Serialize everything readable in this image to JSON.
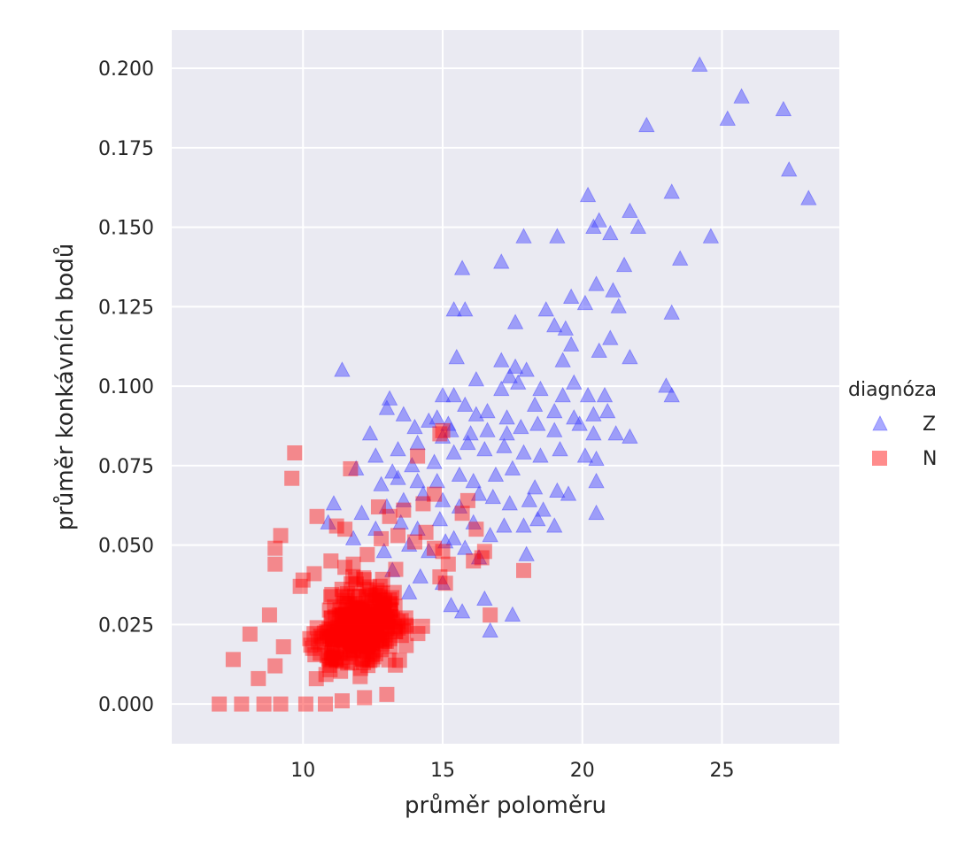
{
  "chart_data": {
    "type": "scatter",
    "xlabel": "průměr poloměru",
    "ylabel": "průměr konkávních bodů",
    "xlim": [
      5.3,
      29.2
    ],
    "ylim": [
      -0.0125,
      0.212
    ],
    "xticks": [
      10,
      15,
      20,
      25
    ],
    "yticks": [
      0.0,
      0.025,
      0.05,
      0.075,
      0.1,
      0.125,
      0.15,
      0.175,
      0.2
    ],
    "xtick_labels": [
      "10",
      "15",
      "20",
      "25"
    ],
    "ytick_labels": [
      "0.000",
      "0.025",
      "0.050",
      "0.075",
      "0.100",
      "0.125",
      "0.150",
      "0.175",
      "0.200"
    ],
    "grid": true,
    "legend": {
      "title": "diagnóza",
      "placement": "right"
    },
    "colors": {
      "background": "#eaeaf2",
      "grid": "#ffffff",
      "Z": "#4040ff",
      "N": "#ff0000"
    },
    "series": [
      {
        "name": "Z",
        "marker": "triangle",
        "color": "#4040ff",
        "points": [
          [
            24.2,
            0.201
          ],
          [
            25.7,
            0.191
          ],
          [
            27.2,
            0.187
          ],
          [
            25.2,
            0.184
          ],
          [
            22.3,
            0.182
          ],
          [
            27.4,
            0.168
          ],
          [
            28.1,
            0.159
          ],
          [
            23.2,
            0.161
          ],
          [
            20.2,
            0.16
          ],
          [
            21.7,
            0.155
          ],
          [
            20.6,
            0.152
          ],
          [
            20.4,
            0.15
          ],
          [
            22.0,
            0.15
          ],
          [
            21.0,
            0.148
          ],
          [
            17.9,
            0.147
          ],
          [
            19.1,
            0.147
          ],
          [
            24.6,
            0.147
          ],
          [
            23.5,
            0.14
          ],
          [
            17.1,
            0.139
          ],
          [
            21.5,
            0.138
          ],
          [
            15.7,
            0.137
          ],
          [
            20.5,
            0.132
          ],
          [
            21.1,
            0.13
          ],
          [
            19.6,
            0.128
          ],
          [
            20.1,
            0.126
          ],
          [
            15.4,
            0.124
          ],
          [
            15.8,
            0.124
          ],
          [
            18.7,
            0.124
          ],
          [
            21.3,
            0.125
          ],
          [
            23.2,
            0.123
          ],
          [
            17.6,
            0.12
          ],
          [
            19.0,
            0.119
          ],
          [
            19.4,
            0.118
          ],
          [
            21.0,
            0.115
          ],
          [
            19.6,
            0.113
          ],
          [
            20.6,
            0.111
          ],
          [
            11.4,
            0.105
          ],
          [
            15.5,
            0.109
          ],
          [
            17.1,
            0.108
          ],
          [
            17.6,
            0.106
          ],
          [
            18.0,
            0.105
          ],
          [
            19.3,
            0.108
          ],
          [
            21.7,
            0.109
          ],
          [
            17.4,
            0.103
          ],
          [
            16.2,
            0.102
          ],
          [
            19.7,
            0.101
          ],
          [
            23.0,
            0.1
          ],
          [
            23.2,
            0.097
          ],
          [
            13.1,
            0.096
          ],
          [
            13.0,
            0.093
          ],
          [
            15.0,
            0.097
          ],
          [
            15.4,
            0.097
          ],
          [
            17.1,
            0.099
          ],
          [
            17.7,
            0.101
          ],
          [
            18.5,
            0.099
          ],
          [
            19.3,
            0.097
          ],
          [
            20.2,
            0.097
          ],
          [
            20.8,
            0.097
          ],
          [
            13.6,
            0.091
          ],
          [
            14.0,
            0.087
          ],
          [
            14.5,
            0.089
          ],
          [
            14.8,
            0.09
          ],
          [
            15.2,
            0.088
          ],
          [
            15.8,
            0.094
          ],
          [
            16.2,
            0.091
          ],
          [
            16.6,
            0.092
          ],
          [
            17.3,
            0.09
          ],
          [
            18.3,
            0.094
          ],
          [
            19.0,
            0.092
          ],
          [
            19.7,
            0.09
          ],
          [
            20.4,
            0.091
          ],
          [
            20.9,
            0.092
          ],
          [
            12.4,
            0.085
          ],
          [
            13.4,
            0.08
          ],
          [
            14.1,
            0.082
          ],
          [
            15.0,
            0.084
          ],
          [
            15.3,
            0.086
          ],
          [
            16.0,
            0.085
          ],
          [
            16.6,
            0.086
          ],
          [
            17.3,
            0.085
          ],
          [
            17.8,
            0.087
          ],
          [
            18.4,
            0.088
          ],
          [
            19.0,
            0.086
          ],
          [
            19.9,
            0.088
          ],
          [
            20.4,
            0.085
          ],
          [
            21.2,
            0.085
          ],
          [
            21.7,
            0.084
          ],
          [
            12.6,
            0.078
          ],
          [
            13.2,
            0.073
          ],
          [
            13.9,
            0.075
          ],
          [
            14.7,
            0.076
          ],
          [
            15.4,
            0.079
          ],
          [
            15.9,
            0.082
          ],
          [
            16.5,
            0.08
          ],
          [
            17.2,
            0.081
          ],
          [
            17.9,
            0.079
          ],
          [
            18.5,
            0.078
          ],
          [
            19.2,
            0.08
          ],
          [
            20.1,
            0.078
          ],
          [
            20.5,
            0.077
          ],
          [
            11.9,
            0.074
          ],
          [
            12.8,
            0.069
          ],
          [
            13.4,
            0.071
          ],
          [
            14.1,
            0.07
          ],
          [
            14.8,
            0.07
          ],
          [
            15.6,
            0.072
          ],
          [
            16.1,
            0.07
          ],
          [
            16.9,
            0.072
          ],
          [
            17.5,
            0.074
          ],
          [
            18.3,
            0.068
          ],
          [
            19.1,
            0.067
          ],
          [
            20.5,
            0.07
          ],
          [
            11.1,
            0.063
          ],
          [
            12.1,
            0.06
          ],
          [
            13.0,
            0.062
          ],
          [
            13.6,
            0.064
          ],
          [
            14.3,
            0.066
          ],
          [
            15.0,
            0.064
          ],
          [
            15.6,
            0.062
          ],
          [
            16.3,
            0.066
          ],
          [
            16.8,
            0.065
          ],
          [
            17.4,
            0.063
          ],
          [
            18.1,
            0.064
          ],
          [
            18.6,
            0.061
          ],
          [
            19.5,
            0.066
          ],
          [
            20.5,
            0.06
          ],
          [
            10.9,
            0.057
          ],
          [
            11.8,
            0.052
          ],
          [
            12.6,
            0.055
          ],
          [
            13.5,
            0.057
          ],
          [
            14.1,
            0.055
          ],
          [
            14.9,
            0.058
          ],
          [
            15.4,
            0.052
          ],
          [
            16.1,
            0.057
          ],
          [
            16.7,
            0.053
          ],
          [
            17.2,
            0.056
          ],
          [
            17.9,
            0.056
          ],
          [
            18.4,
            0.058
          ],
          [
            19.0,
            0.056
          ],
          [
            12.9,
            0.048
          ],
          [
            13.8,
            0.05
          ],
          [
            14.5,
            0.048
          ],
          [
            15.1,
            0.051
          ],
          [
            15.8,
            0.049
          ],
          [
            16.3,
            0.046
          ],
          [
            18.0,
            0.047
          ],
          [
            13.2,
            0.042
          ],
          [
            14.2,
            0.04
          ],
          [
            15.0,
            0.038
          ],
          [
            13.8,
            0.035
          ],
          [
            15.7,
            0.029
          ],
          [
            16.5,
            0.033
          ],
          [
            15.3,
            0.031
          ],
          [
            17.5,
            0.028
          ],
          [
            16.7,
            0.023
          ]
        ]
      },
      {
        "name": "N",
        "marker": "square",
        "color": "#ff0000",
        "points": [
          [
            9.7,
            0.079
          ],
          [
            9.6,
            0.071
          ],
          [
            11.7,
            0.074
          ],
          [
            9.2,
            0.053
          ],
          [
            9.0,
            0.049
          ],
          [
            9.0,
            0.044
          ],
          [
            10.5,
            0.059
          ],
          [
            11.2,
            0.056
          ],
          [
            11.5,
            0.055
          ],
          [
            12.7,
            0.062
          ],
          [
            13.1,
            0.059
          ],
          [
            13.6,
            0.061
          ],
          [
            14.3,
            0.063
          ],
          [
            14.7,
            0.066
          ],
          [
            14.1,
            0.078
          ],
          [
            14.9,
            0.085
          ],
          [
            15.0,
            0.086
          ],
          [
            15.7,
            0.06
          ],
          [
            15.9,
            0.064
          ],
          [
            16.2,
            0.055
          ],
          [
            16.1,
            0.045
          ],
          [
            16.4,
            0.046
          ],
          [
            16.5,
            0.048
          ],
          [
            17.9,
            0.042
          ],
          [
            16.7,
            0.028
          ],
          [
            10.0,
            0.039
          ],
          [
            10.4,
            0.041
          ],
          [
            9.9,
            0.037
          ],
          [
            11.0,
            0.045
          ],
          [
            11.5,
            0.043
          ],
          [
            11.8,
            0.044
          ],
          [
            12.3,
            0.047
          ],
          [
            12.8,
            0.052
          ],
          [
            13.4,
            0.053
          ],
          [
            14.0,
            0.051
          ],
          [
            14.4,
            0.054
          ],
          [
            14.7,
            0.049
          ],
          [
            15.0,
            0.048
          ],
          [
            15.2,
            0.044
          ],
          [
            14.9,
            0.04
          ],
          [
            15.1,
            0.038
          ],
          [
            7.0,
            0.0
          ],
          [
            7.8,
            0.0
          ],
          [
            8.6,
            0.0
          ],
          [
            9.2,
            0.0
          ],
          [
            10.1,
            0.0
          ],
          [
            10.8,
            0.0
          ],
          [
            11.4,
            0.001
          ],
          [
            12.2,
            0.002
          ],
          [
            13.0,
            0.003
          ],
          [
            7.5,
            0.014
          ],
          [
            8.1,
            0.022
          ],
          [
            8.8,
            0.028
          ],
          [
            9.3,
            0.018
          ],
          [
            8.4,
            0.008
          ],
          [
            9.0,
            0.012
          ]
        ],
        "clusters": [
          {
            "count": 320,
            "center": [
              12.0,
              0.024
            ],
            "spread": [
              1.5,
              0.011
            ],
            "x_range": [
              8.0,
              15.8
            ],
            "y_range": [
              0.0,
              0.05
            ]
          }
        ]
      }
    ]
  }
}
